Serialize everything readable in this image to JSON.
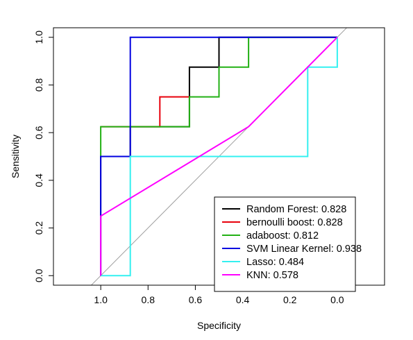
{
  "chart_data": {
    "type": "line",
    "xlabel": "Specificity",
    "ylabel": "Sensitivity",
    "xlim": [
      1.2,
      -0.2
    ],
    "ylim": [
      -0.04,
      1.04
    ],
    "x_reversed": true,
    "x_ticks": [
      1.0,
      0.8,
      0.6,
      0.4,
      0.2,
      0.0
    ],
    "x_tick_labels": [
      "1.0",
      "0.8",
      "0.6",
      "0.4",
      "0.2",
      "0.0"
    ],
    "y_ticks": [
      0.0,
      0.2,
      0.4,
      0.6,
      0.8,
      1.0
    ],
    "y_tick_labels": [
      "0.0",
      "0.2",
      "0.4",
      "0.6",
      "0.8",
      "1.0"
    ],
    "grid": false,
    "legend_position": "bottom-right",
    "diagonal_reference": {
      "from": [
        1,
        0
      ],
      "to": [
        0,
        1
      ],
      "color": "#a0a0a0"
    },
    "series": [
      {
        "name": "Random Forest: 0.828",
        "color": "#000000",
        "points": [
          [
            1,
            0
          ],
          [
            1,
            0.5
          ],
          [
            0.875,
            0.5
          ],
          [
            0.875,
            0.625
          ],
          [
            0.625,
            0.625
          ],
          [
            0.625,
            0.875
          ],
          [
            0.5,
            0.875
          ],
          [
            0.5,
            1
          ],
          [
            0,
            1
          ]
        ]
      },
      {
        "name": "bernoulli boost: 0.828",
        "color": "#e8000b",
        "points": [
          [
            1,
            0.625
          ],
          [
            0.75,
            0.625
          ],
          [
            0.75,
            0.75
          ],
          [
            0.625,
            0.75
          ]
        ]
      },
      {
        "name": "adaboost: 0.812",
        "color": "#22b014",
        "points": [
          [
            1,
            0.5
          ],
          [
            1,
            0.625
          ],
          [
            0.625,
            0.625
          ],
          [
            0.625,
            0.75
          ],
          [
            0.5,
            0.75
          ],
          [
            0.5,
            0.875
          ],
          [
            0.375,
            0.875
          ],
          [
            0.375,
            1
          ],
          [
            0,
            1
          ]
        ]
      },
      {
        "name": "SVM Linear Kernel: 0.938",
        "color": "#0000e0",
        "points": [
          [
            1,
            0
          ],
          [
            1,
            0.5
          ],
          [
            0.875,
            0.5
          ],
          [
            0.875,
            1
          ],
          [
            0,
            1
          ]
        ]
      },
      {
        "name": "Lasso: 0.484",
        "color": "#33f0f0",
        "points": [
          [
            1,
            0
          ],
          [
            0.875,
            0
          ],
          [
            0.875,
            0.5
          ],
          [
            0.125,
            0.5
          ],
          [
            0.125,
            0.875
          ],
          [
            0,
            0.875
          ],
          [
            0,
            1
          ]
        ]
      },
      {
        "name": "KNN: 0.578",
        "color": "#ff00ff",
        "points": [
          [
            1,
            0
          ],
          [
            1,
            0.25
          ],
          [
            0.375,
            0.625
          ],
          [
            0,
            1
          ]
        ]
      }
    ]
  }
}
